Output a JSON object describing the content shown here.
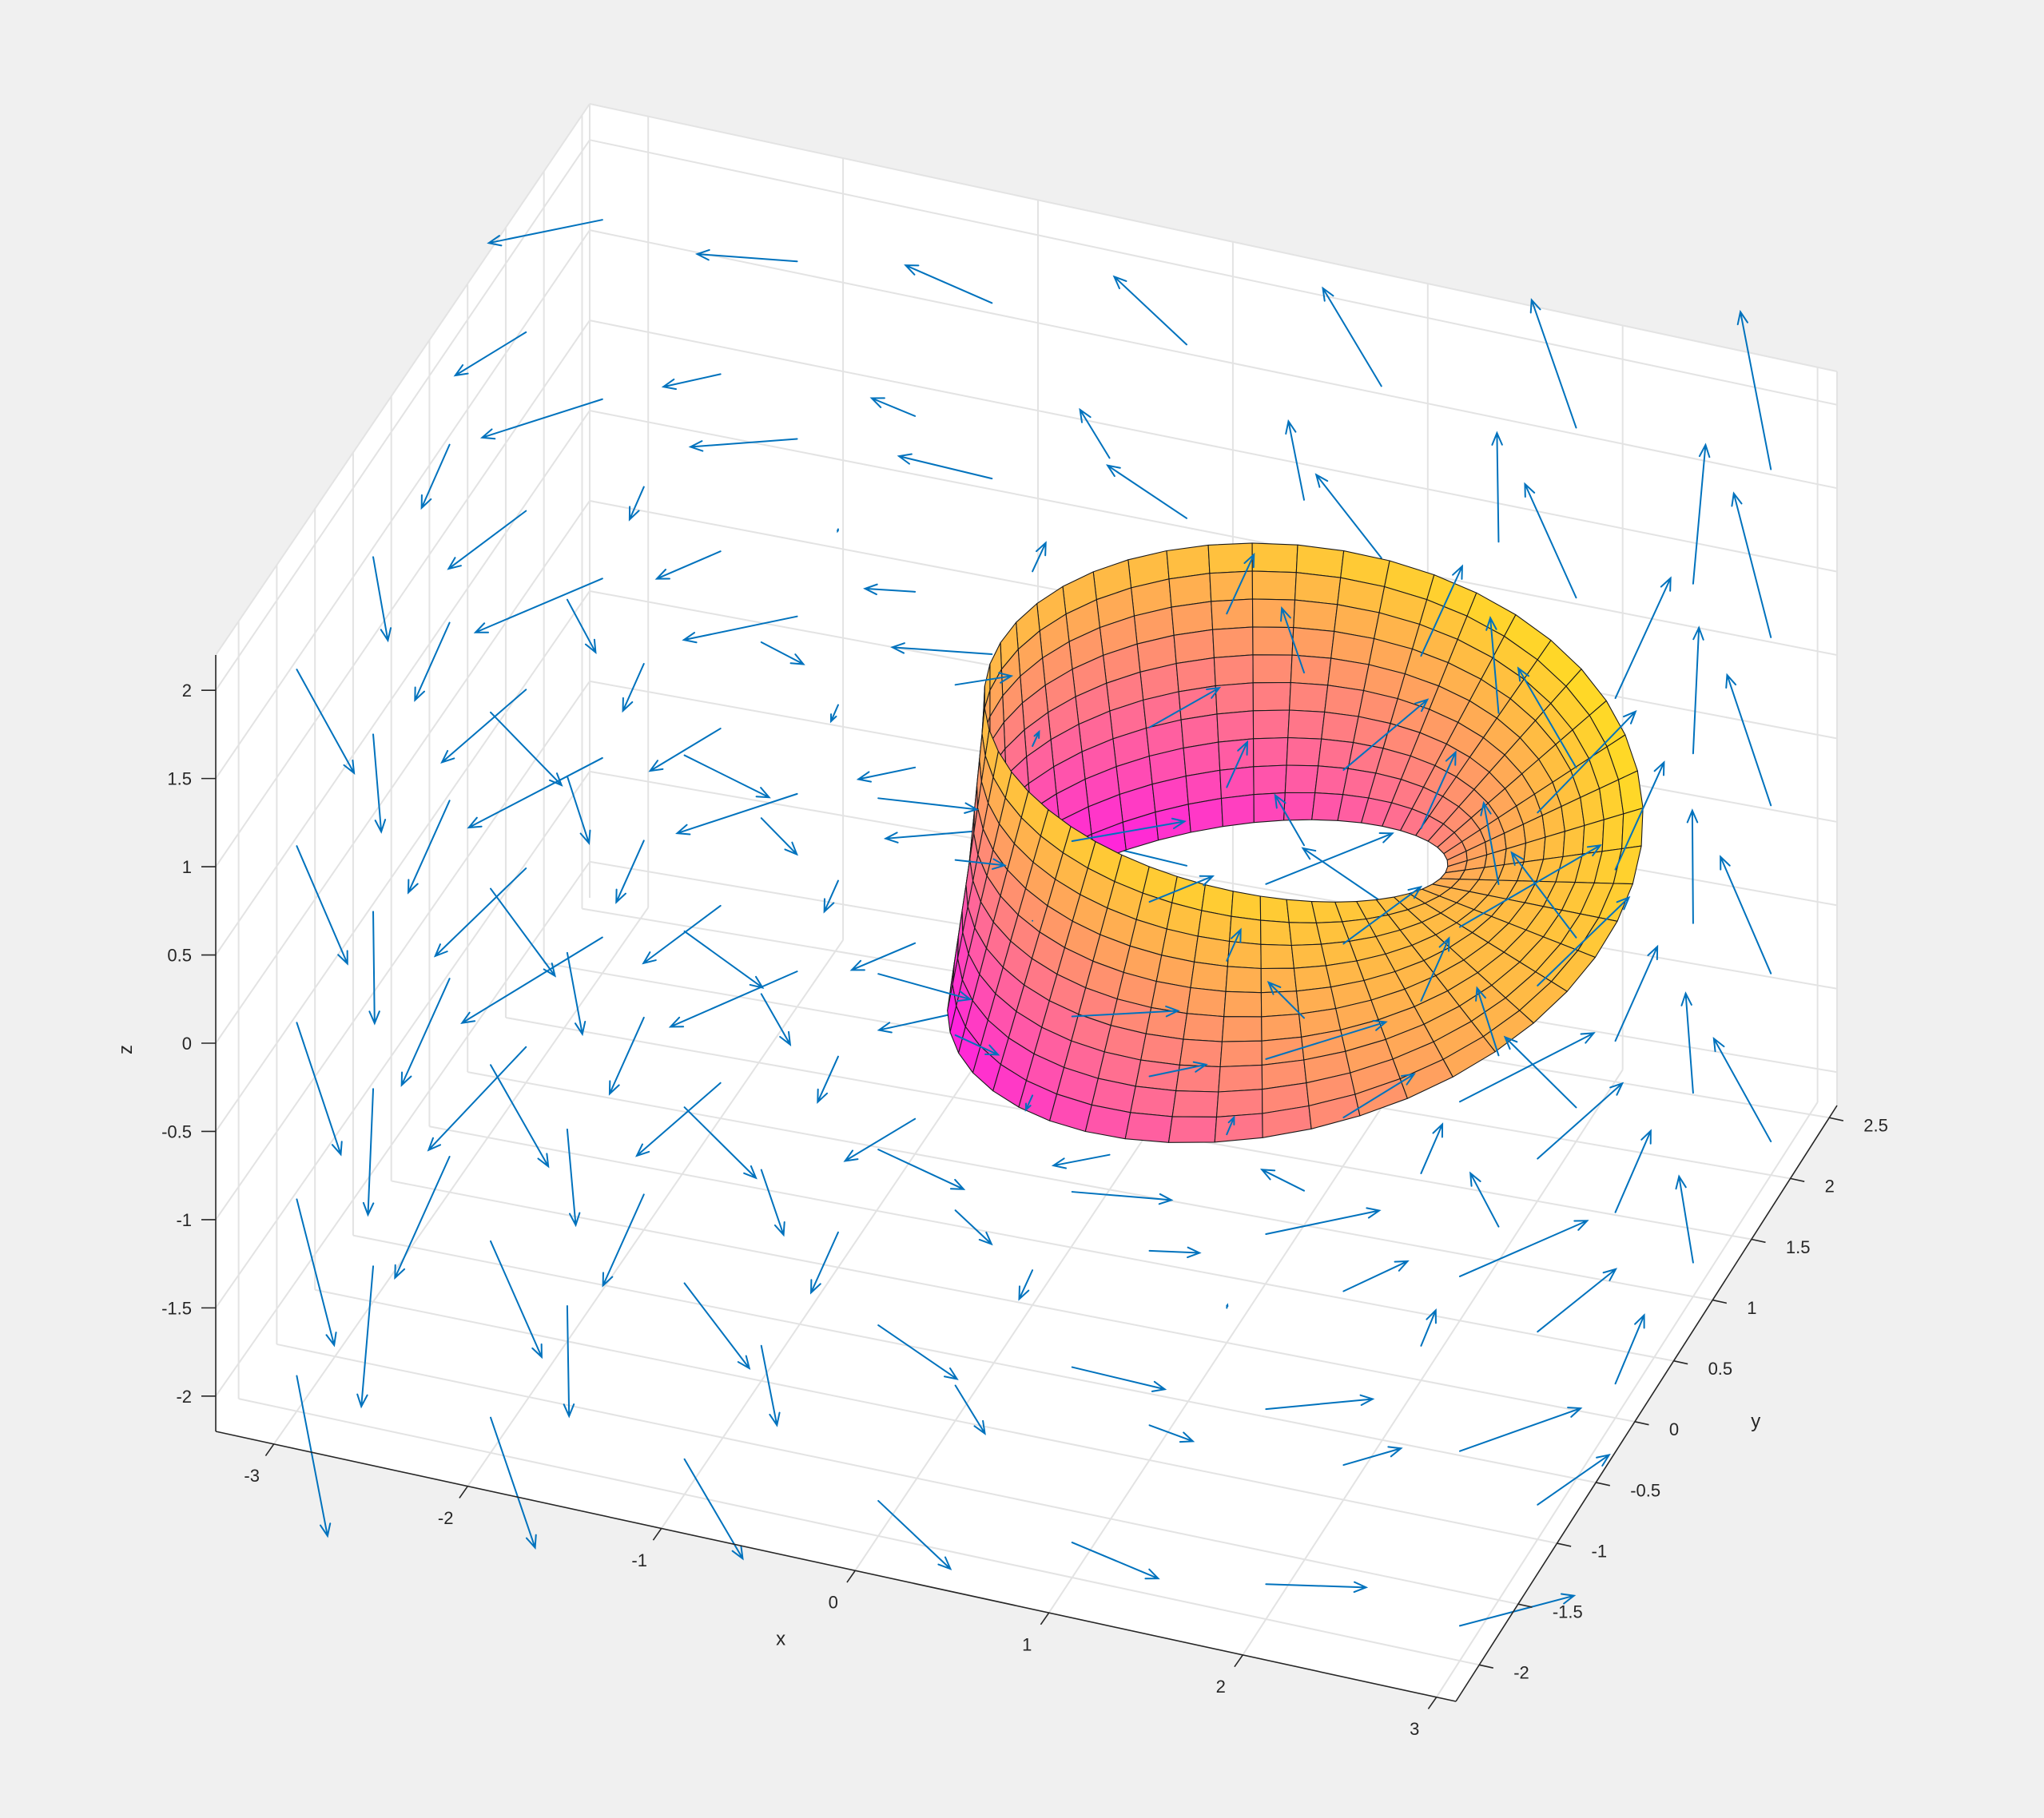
{
  "chart_data": {
    "type": "surface",
    "description_shown": "3-D surface with quiver field",
    "title": "",
    "xlabel": "x",
    "ylabel": "y",
    "zlabel": "z",
    "xlim": [
      -3.3,
      3.1
    ],
    "ylim": [
      -2.3,
      2.6
    ],
    "zlim": [
      -2.2,
      2.2
    ],
    "xticks": [
      -3,
      -2,
      -1,
      0,
      1,
      2,
      3
    ],
    "yticks": [
      -2,
      -1.5,
      -1,
      -0.5,
      0,
      0.5,
      1,
      1.5,
      2,
      2.5
    ],
    "zticks": [
      -2,
      -1.5,
      -1,
      -0.5,
      0,
      0.5,
      1,
      1.5,
      2
    ],
    "xtick_labels": [
      "-3",
      "-2",
      "-1",
      "0",
      "1",
      "2",
      "3"
    ],
    "ytick_labels": [
      "-2",
      "-1.5",
      "-1",
      "-0.5",
      "0",
      "0.5",
      "1",
      "1.5",
      "2",
      "2.5"
    ],
    "ztick_labels": [
      "-2",
      "-1.5",
      "-1",
      "-0.5",
      "0",
      "0.5",
      "1",
      "1.5",
      "2"
    ],
    "grid": true,
    "surface": {
      "shape": "mobius-like band",
      "center": [
        0.8,
        0.9,
        0.0
      ],
      "inner_radius": 0.9,
      "outer_radius": 1.85,
      "height": 0.75,
      "colormap": "spring",
      "colormap_colors": [
        "#ff00ff",
        "#ffff00"
      ],
      "edge_color": "#1a1a1a"
    },
    "quiver": {
      "color": "#0072bd",
      "grid_x": [
        -3,
        -2,
        -1,
        0,
        1,
        2,
        3
      ],
      "grid_y": [
        -2,
        -1,
        0,
        1,
        2
      ],
      "grid_z": [
        -2,
        -1,
        0,
        1,
        2
      ]
    },
    "view": {
      "azimuth": -37.5,
      "elevation": 30
    },
    "background_color": "#f0f0f0",
    "axes_color": "#ffffff"
  }
}
